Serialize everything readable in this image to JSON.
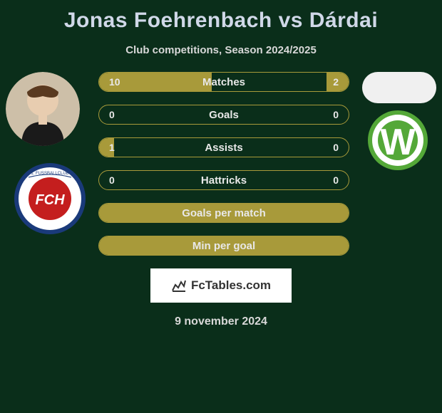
{
  "title": "Jonas Foehrenbach vs Dárdai",
  "subtitle": "Club competitions, Season 2024/2025",
  "date": "9 november 2024",
  "branding": {
    "text": "FcTables.com"
  },
  "colors": {
    "background": "#0a2e1a",
    "bar_border": "#a89a3a",
    "bar_fill": "#a89a3a",
    "title": "#d0d8e8",
    "text": "#d8d8d8"
  },
  "player1": {
    "name": "Jonas Foehrenbach",
    "club": "1. FC Heidenheim"
  },
  "player2": {
    "name": "Dárdai",
    "club": "VfL Wolfsburg"
  },
  "stats": [
    {
      "label": "Matches",
      "a": "10",
      "b": "2",
      "fill_a": 45,
      "fill_b": 9
    },
    {
      "label": "Goals",
      "a": "0",
      "b": "0",
      "fill_a": 0,
      "fill_b": 0
    },
    {
      "label": "Assists",
      "a": "1",
      "b": "0",
      "fill_a": 6,
      "fill_b": 0
    },
    {
      "label": "Hattricks",
      "a": "0",
      "b": "0",
      "fill_a": 0,
      "fill_b": 0
    },
    {
      "label": "Goals per match",
      "a": "",
      "b": "",
      "fill_a": 100,
      "fill_b": 0,
      "full": true
    },
    {
      "label": "Min per goal",
      "a": "",
      "b": "",
      "fill_a": 100,
      "fill_b": 0,
      "full": true
    }
  ]
}
